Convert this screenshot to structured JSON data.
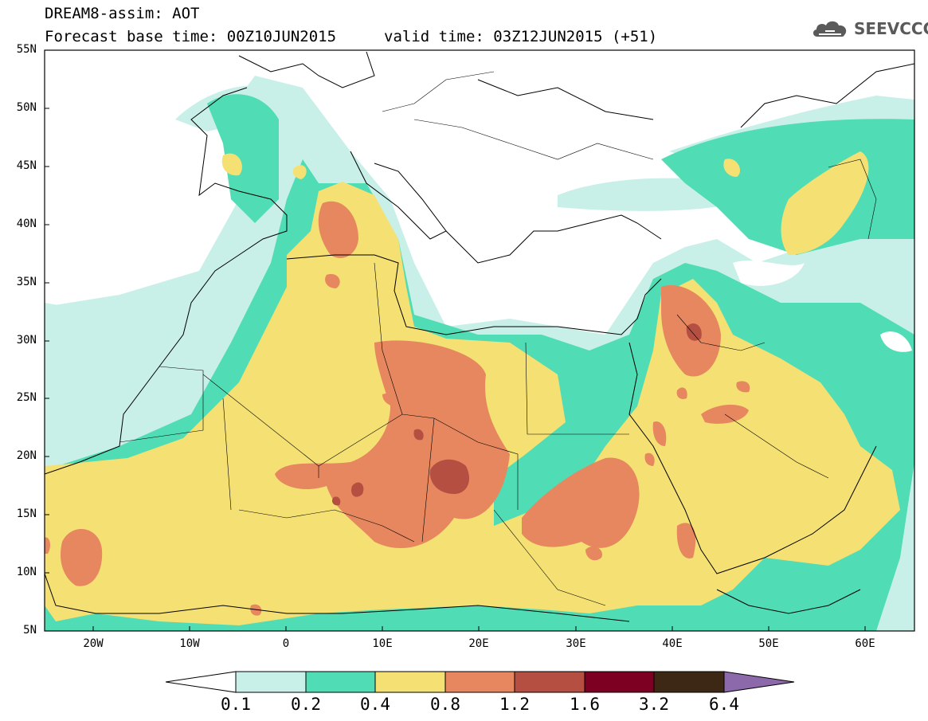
{
  "header": {
    "title_line1": "DREAM8-assim: AOT",
    "title_line2": "Forecast base time: 00Z10JUN2015",
    "valid_time": "valid time: 03Z12JUN2015 (+51)"
  },
  "logo": {
    "text": "SEEVCCC",
    "icon": "cloud-logo-icon",
    "color": "#5a5a5a"
  },
  "map": {
    "lat_range": [
      "5N",
      "55N"
    ],
    "lon_range": [
      "25W",
      "65E"
    ],
    "y_ticks": [
      "55N",
      "50N",
      "45N",
      "40N",
      "35N",
      "30N",
      "25N",
      "20N",
      "15N",
      "10N",
      "5N"
    ],
    "x_ticks": [
      "20W",
      "10W",
      "0",
      "10E",
      "20E",
      "30E",
      "40E",
      "50E",
      "60E"
    ]
  },
  "colorbar": {
    "labels": [
      "0.1",
      "0.2",
      "0.4",
      "0.8",
      "1.2",
      "1.6",
      "3.2",
      "6.4"
    ],
    "colors": [
      "#ffffff",
      "#c8f0e8",
      "#50dcb4",
      "#f5e173",
      "#e6875f",
      "#b44f41",
      "#7d0023",
      "#3c2814",
      "#8c69aa"
    ]
  }
}
